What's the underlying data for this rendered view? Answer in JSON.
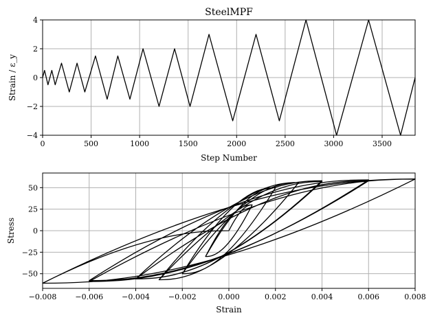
{
  "chart_data": [
    {
      "type": "line",
      "title": "SteelMPF",
      "xlabel": "Step Number",
      "ylabel": "Strain / ε_y",
      "xlim": [
        0,
        3840
      ],
      "ylim": [
        -4,
        4
      ],
      "xticks": [
        "0",
        "500",
        "1000",
        "1500",
        "2000",
        "2500",
        "3000",
        "3500"
      ],
      "yticks": [
        "4",
        "2",
        "0",
        "−2",
        "−4"
      ],
      "grid": true,
      "series": [
        {
          "x": [
            0,
            20,
            55,
            95,
            130,
            195,
            275,
            355,
            435,
            545,
            665,
            775,
            900,
            1035,
            1200,
            1360,
            1520,
            1715,
            1960,
            2200,
            2440,
            2715,
            3030,
            3360,
            3690,
            3840
          ],
          "y": [
            0,
            0.5,
            -0.5,
            0.5,
            -0.5,
            1,
            -1,
            1,
            -1,
            1.5,
            -1.5,
            1.5,
            -1.5,
            2,
            -2,
            2,
            -2,
            3,
            -3,
            3,
            -3,
            4,
            -4,
            4,
            -4,
            0
          ]
        }
      ]
    },
    {
      "type": "line",
      "title": "",
      "xlabel": "Strain",
      "ylabel": "Stress",
      "xlim": [
        -0.008,
        0.008
      ],
      "ylim": [
        -67,
        67
      ],
      "xticks": [
        "−0.008",
        "−0.006",
        "−0.004",
        "−0.002",
        "0.000",
        "0.002",
        "0.004",
        "0.006",
        "0.008"
      ],
      "yticks": [
        "50",
        "25",
        "0",
        "−25",
        "−50"
      ],
      "grid": true,
      "series": [
        {
          "x": [
            0,
            0.001,
            -0.001,
            0.001,
            -0.001,
            0.002,
            -0.002,
            0.002,
            -0.002,
            0.003,
            -0.003,
            0.003,
            -0.003,
            0.004,
            -0.004,
            0.004,
            -0.004,
            0.006,
            -0.006,
            0.006,
            -0.006,
            0.008,
            -0.008,
            0.008,
            -0.008,
            0
          ],
          "y": [
            0,
            30,
            -30,
            30,
            -30,
            50,
            -50,
            50,
            -50,
            56,
            -57,
            56,
            -57,
            57,
            -56,
            58,
            -56,
            58,
            -58,
            59,
            -59,
            60,
            -61,
            60,
            -61,
            0
          ]
        }
      ]
    }
  ]
}
